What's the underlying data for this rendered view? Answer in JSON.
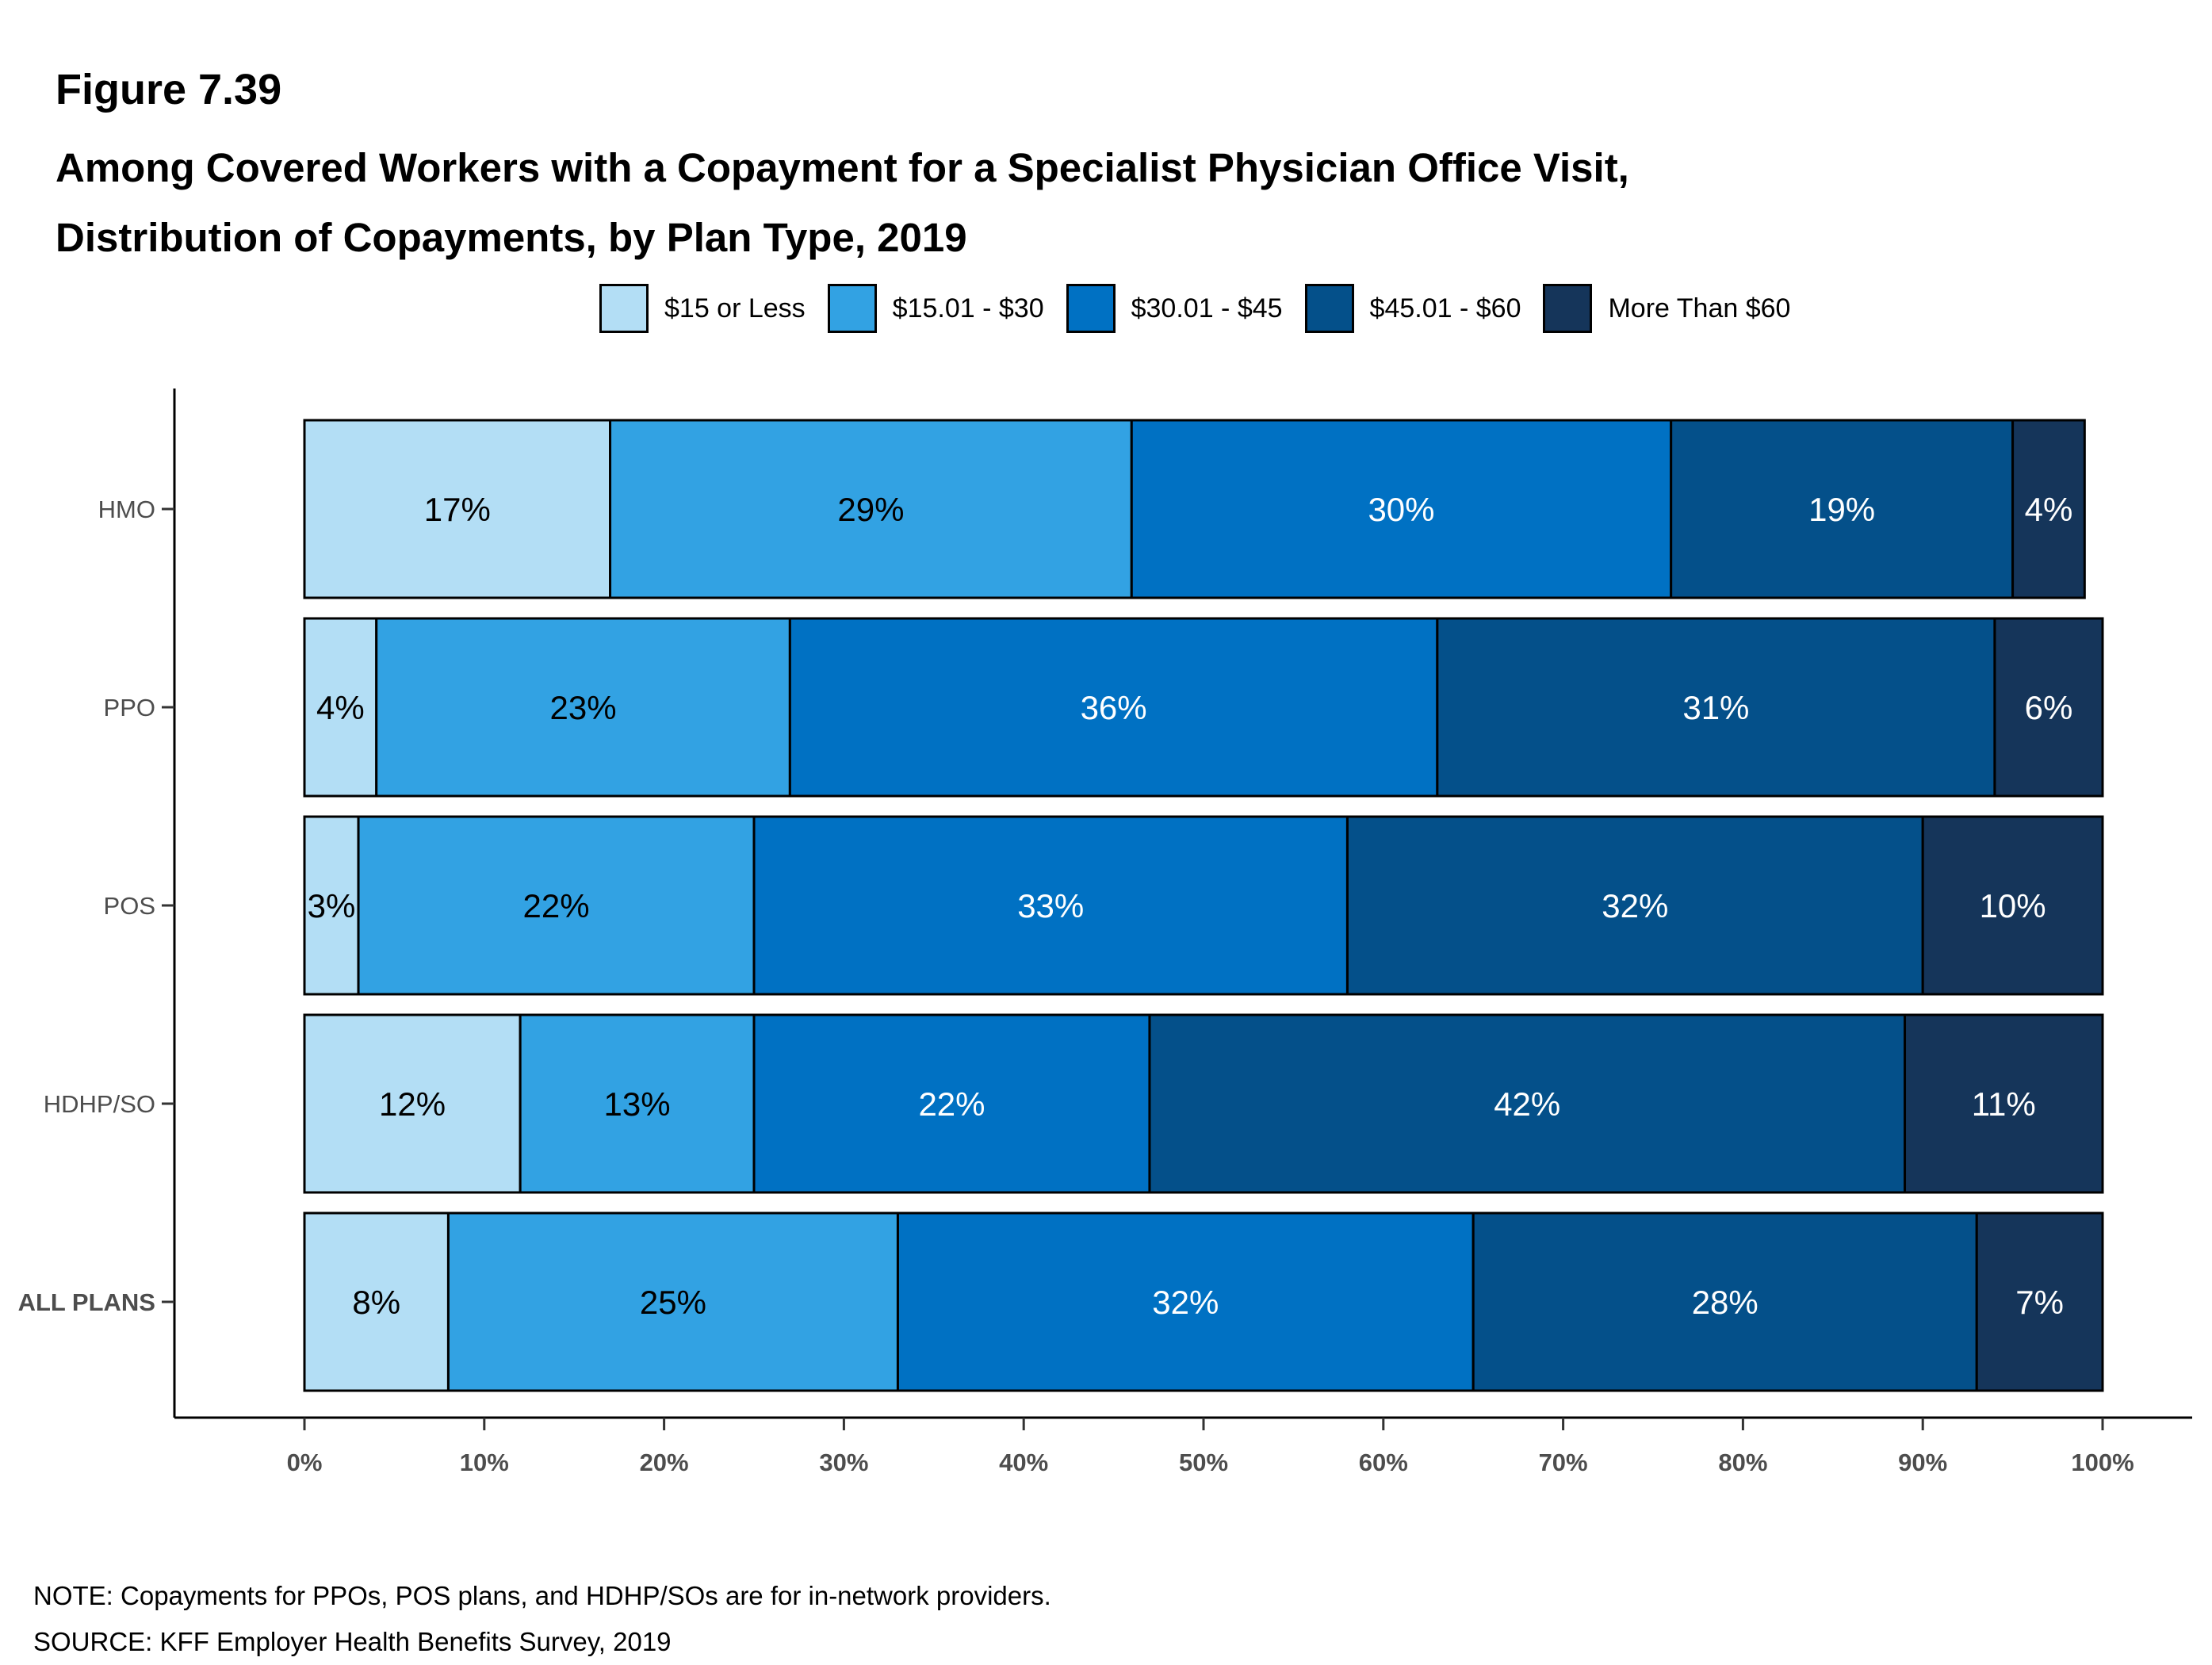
{
  "figure_label": "Figure 7.39",
  "title_lines": [
    "Among Covered Workers with a Copayment for a Specialist Physician Office Visit,",
    "Distribution of Copayments, by Plan Type, 2019"
  ],
  "note": "NOTE: Copayments for PPOs, POS plans, and HDHP/SOs are for in-network providers.",
  "source": "SOURCE: KFF Employer Health Benefits Survey, 2019",
  "chart_data": {
    "type": "bar",
    "orientation": "horizontal",
    "stacked": true,
    "title": "Among Covered Workers with a Copayment for a Specialist Physician Office Visit, Distribution of Copayments, by Plan Type, 2019",
    "categories": [
      "HMO",
      "PPO",
      "POS",
      "HDHP/SO",
      "ALL PLANS"
    ],
    "bold_categories": [
      "ALL PLANS"
    ],
    "series": [
      {
        "name": "$15 or Less",
        "color": "#b3def5",
        "label_color": "#000000",
        "values": [
          17,
          4,
          3,
          12,
          8
        ]
      },
      {
        "name": "$15.01 - $30",
        "color": "#32a2e3",
        "label_color": "#000000",
        "values": [
          29,
          23,
          22,
          13,
          25
        ]
      },
      {
        "name": "$30.01 - $45",
        "color": "#0071c3",
        "label_color": "#ffffff",
        "values": [
          30,
          36,
          33,
          22,
          32
        ]
      },
      {
        "name": "$45.01 - $60",
        "color": "#04508a",
        "label_color": "#ffffff",
        "values": [
          19,
          31,
          32,
          42,
          28
        ]
      },
      {
        "name": "More Than $60",
        "color": "#15355a",
        "label_color": "#ffffff",
        "values": [
          4,
          6,
          10,
          11,
          7
        ]
      }
    ],
    "xlim": [
      0,
      100
    ],
    "x_ticks": [
      "0%",
      "10%",
      "20%",
      "30%",
      "40%",
      "50%",
      "60%",
      "70%",
      "80%",
      "90%",
      "100%"
    ],
    "legend_position": "top",
    "grid": false
  }
}
